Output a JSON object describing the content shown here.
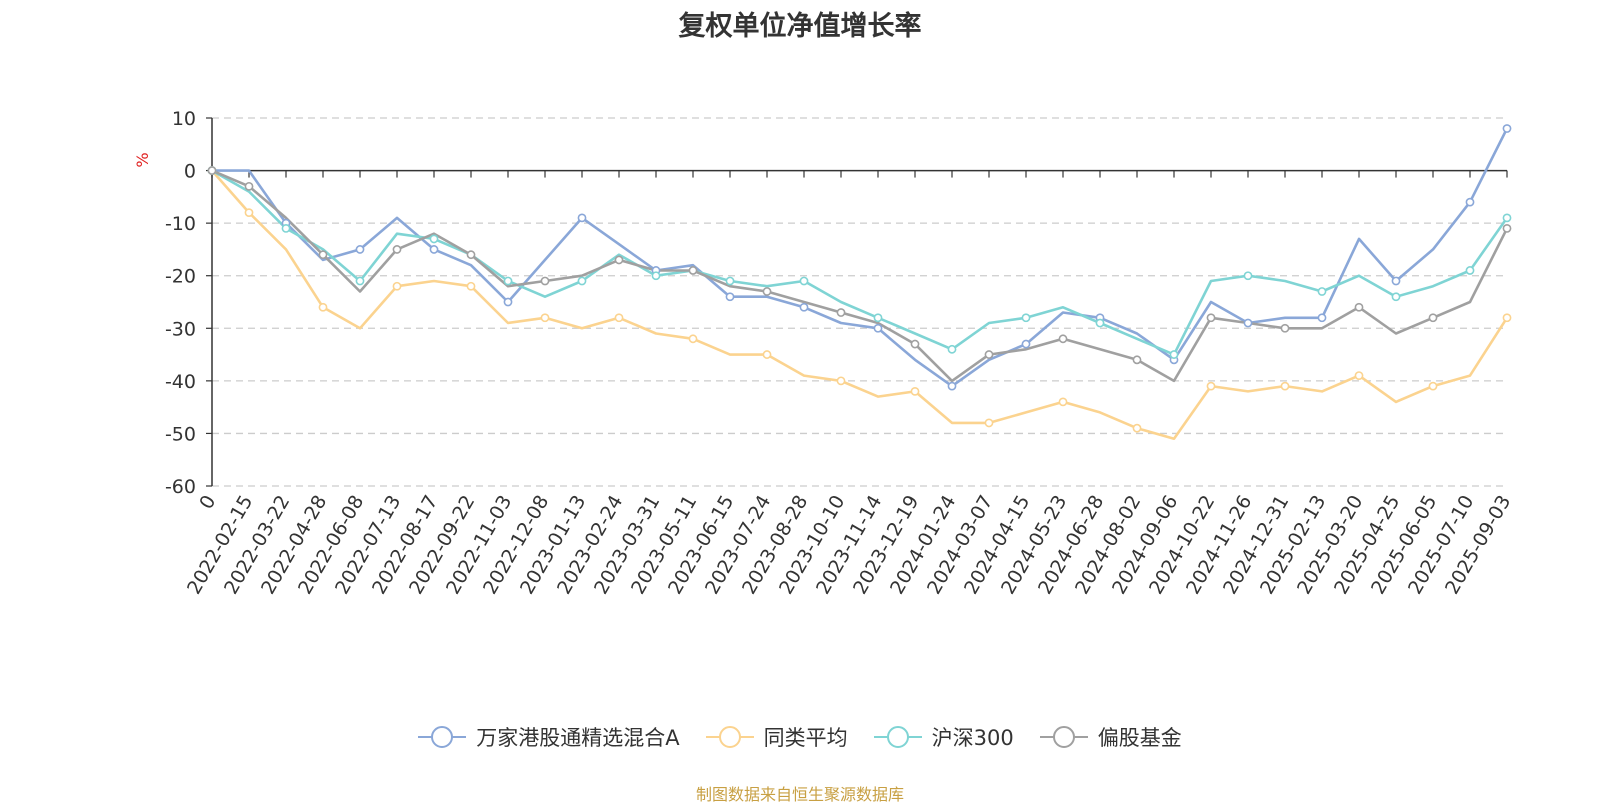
{
  "chart_data": {
    "type": "line",
    "title": "复权单位净值增长率",
    "ylabel": "%",
    "ylim": [
      -60,
      10
    ],
    "yticks": [
      10,
      0,
      -10,
      -20,
      -30,
      -40,
      -50,
      -60
    ],
    "grid": true,
    "legend_position": "bottom-center",
    "x": [
      "0",
      "2022-02-15",
      "2022-03-22",
      "2022-04-28",
      "2022-06-08",
      "2022-07-13",
      "2022-08-17",
      "2022-09-22",
      "2022-11-03",
      "2022-12-08",
      "2023-01-13",
      "2023-02-24",
      "2023-03-31",
      "2023-05-11",
      "2023-06-15",
      "2023-07-24",
      "2023-08-28",
      "2023-10-10",
      "2023-11-14",
      "2023-12-19",
      "2024-01-24",
      "2024-03-07",
      "2024-04-15",
      "2024-05-23",
      "2024-06-28",
      "2024-08-02",
      "2024-09-06",
      "2024-10-22",
      "2024-11-26",
      "2024-12-31",
      "2025-02-13",
      "2025-03-20",
      "2025-04-25",
      "2025-06-05",
      "2025-07-10",
      "2025-09-03"
    ],
    "series": [
      {
        "name": "万家港股通精选混合A",
        "color": "#8aa7d8",
        "values": [
          0,
          0,
          -10,
          -17,
          -15,
          -9,
          -15,
          -18,
          -25,
          -17,
          -9,
          -14,
          -19,
          -18,
          -24,
          -24,
          -26,
          -29,
          -30,
          -36,
          -41,
          -36,
          -33,
          -27,
          -28,
          -31,
          -36,
          -25,
          -29,
          -28,
          -28,
          -13,
          -21,
          -15,
          -6,
          8
        ]
      },
      {
        "name": "同类平均",
        "color": "#fbd38f",
        "values": [
          0,
          -8,
          -15,
          -26,
          -30,
          -22,
          -21,
          -22,
          -29,
          -28,
          -30,
          -28,
          -31,
          -32,
          -35,
          -35,
          -39,
          -40,
          -43,
          -42,
          -48,
          -48,
          -46,
          -44,
          -46,
          -49,
          -51,
          -41,
          -42,
          -41,
          -42,
          -39,
          -44,
          -41,
          -39,
          -28
        ]
      },
      {
        "name": "沪深300",
        "color": "#7fd4d4",
        "values": [
          0,
          -4,
          -11,
          -15,
          -21,
          -12,
          -13,
          -16,
          -21,
          -24,
          -21,
          -16,
          -20,
          -19,
          -21,
          -22,
          -21,
          -25,
          -28,
          -31,
          -34,
          -29,
          -28,
          -26,
          -29,
          -32,
          -35,
          -21,
          -20,
          -21,
          -23,
          -20,
          -24,
          -22,
          -19,
          -9
        ]
      },
      {
        "name": "偏股基金",
        "color": "#a0a0a0",
        "values": [
          0,
          -3,
          -9,
          -16,
          -23,
          -15,
          -12,
          -16,
          -22,
          -21,
          -20,
          -17,
          -19,
          -19,
          -22,
          -23,
          -25,
          -27,
          -29,
          -33,
          -40,
          -35,
          -34,
          -32,
          -34,
          -36,
          -40,
          -28,
          -29,
          -30,
          -30,
          -26,
          -31,
          -28,
          -25,
          -11
        ]
      }
    ]
  },
  "source": "制图数据来自恒生聚源数据库"
}
